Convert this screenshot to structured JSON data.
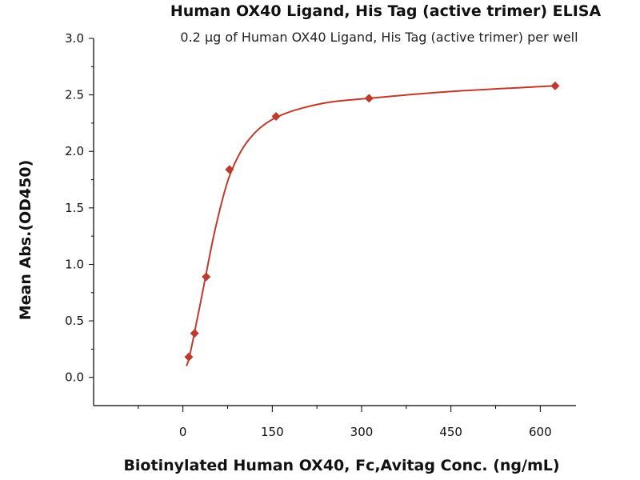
{
  "chart_data": {
    "type": "scatter",
    "title": "Human OX40 Ligand, His Tag (active trimer) ELISA",
    "subtitle": "0.2 μg of Human OX40 Ligand, His Tag (active trimer) per well",
    "xlabel": "Biotinylated Human OX40, Fc,Avitag Conc. (ng/mL)",
    "ylabel": "Mean Abs.(OD450)",
    "xlim": [
      -150,
      660
    ],
    "ylim": [
      -0.25,
      3.0
    ],
    "xticks": [
      0,
      150,
      300,
      450,
      600
    ],
    "yticks": [
      0.0,
      0.5,
      1.0,
      1.5,
      2.0,
      2.5,
      3.0
    ],
    "xtick_labels": [
      "0",
      "150",
      "300",
      "450",
      "600"
    ],
    "ytick_labels": [
      "0.0",
      "0.5",
      "1.0",
      "1.5",
      "2.0",
      "2.5",
      "3.0"
    ],
    "grid": false,
    "marker": "diamond",
    "color": "#c0392b",
    "series": [
      {
        "x": [
          9.8,
          19.5,
          39.1,
          78.1,
          156.3,
          312.5,
          625
        ],
        "y": [
          0.18,
          0.39,
          0.89,
          1.84,
          2.31,
          2.47,
          2.58
        ]
      }
    ],
    "fit_curve": {
      "x": [
        6,
        9.8,
        15,
        19.5,
        28,
        39.1,
        55,
        78.1,
        110,
        156.3,
        230,
        312.5,
        450,
        625
      ],
      "y": [
        0.1,
        0.16,
        0.28,
        0.4,
        0.62,
        0.92,
        1.33,
        1.78,
        2.1,
        2.3,
        2.42,
        2.47,
        2.53,
        2.58
      ]
    }
  }
}
